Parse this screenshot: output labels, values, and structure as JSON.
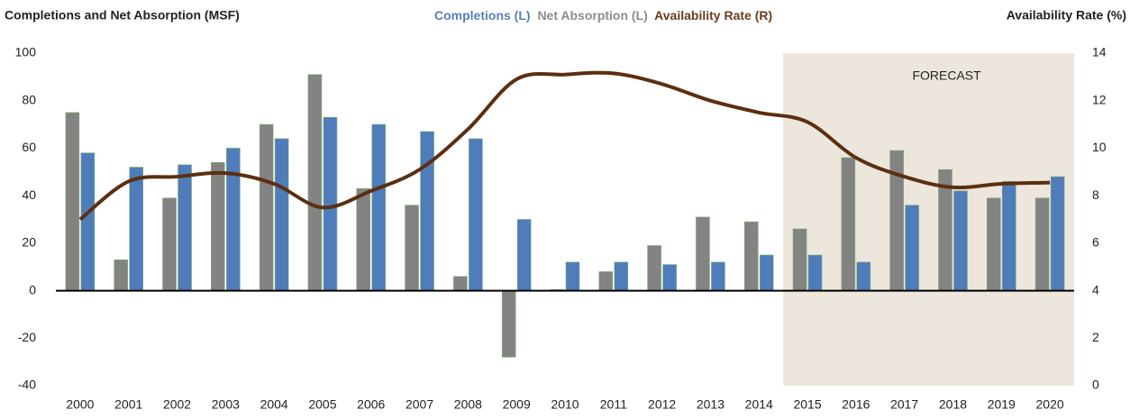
{
  "chart_data": {
    "type": "bar-line",
    "y_axis_title": "Completions and Net Absorption (MSF)",
    "y2_axis_title": "Availability Rate (%)",
    "categories": [
      "2000",
      "2001",
      "2002",
      "2003",
      "2004",
      "2005",
      "2006",
      "2007",
      "2008",
      "2009",
      "2010",
      "2011",
      "2012",
      "2013",
      "2014",
      "2015",
      "2016",
      "2017",
      "2018",
      "2019",
      "2020"
    ],
    "series": [
      {
        "name": "Completions (L)",
        "color": "#4f7cba",
        "kind": "bar",
        "values": [
          58,
          52,
          53,
          60,
          64,
          73,
          70,
          67,
          64,
          30,
          12,
          12,
          11,
          12,
          15,
          15,
          12,
          36,
          42,
          46,
          48
        ]
      },
      {
        "name": "Net Absorption (L)",
        "color": "#838383",
        "kind": "bar",
        "values": [
          75,
          13,
          39,
          54,
          70,
          91,
          43,
          36,
          6,
          -28,
          0.5,
          8,
          19,
          31,
          29,
          26,
          56,
          59,
          51,
          39,
          39
        ]
      },
      {
        "name": "Availability Rate (R)",
        "color": "#5c2f10",
        "kind": "line",
        "axis": "y2",
        "values": [
          7.0,
          8.6,
          8.8,
          8.95,
          8.5,
          7.5,
          8.2,
          9.1,
          10.8,
          12.9,
          13.1,
          13.15,
          12.7,
          12.0,
          11.5,
          11.1,
          9.6,
          8.8,
          8.35,
          8.5,
          8.55
        ]
      }
    ],
    "legend_colors": [
      "#5a7fb6",
      "#8c8c8c",
      "#6a3b1e"
    ],
    "ylim": [
      -40,
      100
    ],
    "yticks": [
      -40,
      -20,
      0,
      20,
      40,
      60,
      80,
      100
    ],
    "y2lim": [
      0,
      14
    ],
    "y2ticks": [
      0,
      2,
      4,
      6,
      8,
      10,
      12,
      14
    ],
    "forecast": {
      "label": "FORECAST",
      "from_category": "2015",
      "color": "#ece6dd"
    }
  }
}
